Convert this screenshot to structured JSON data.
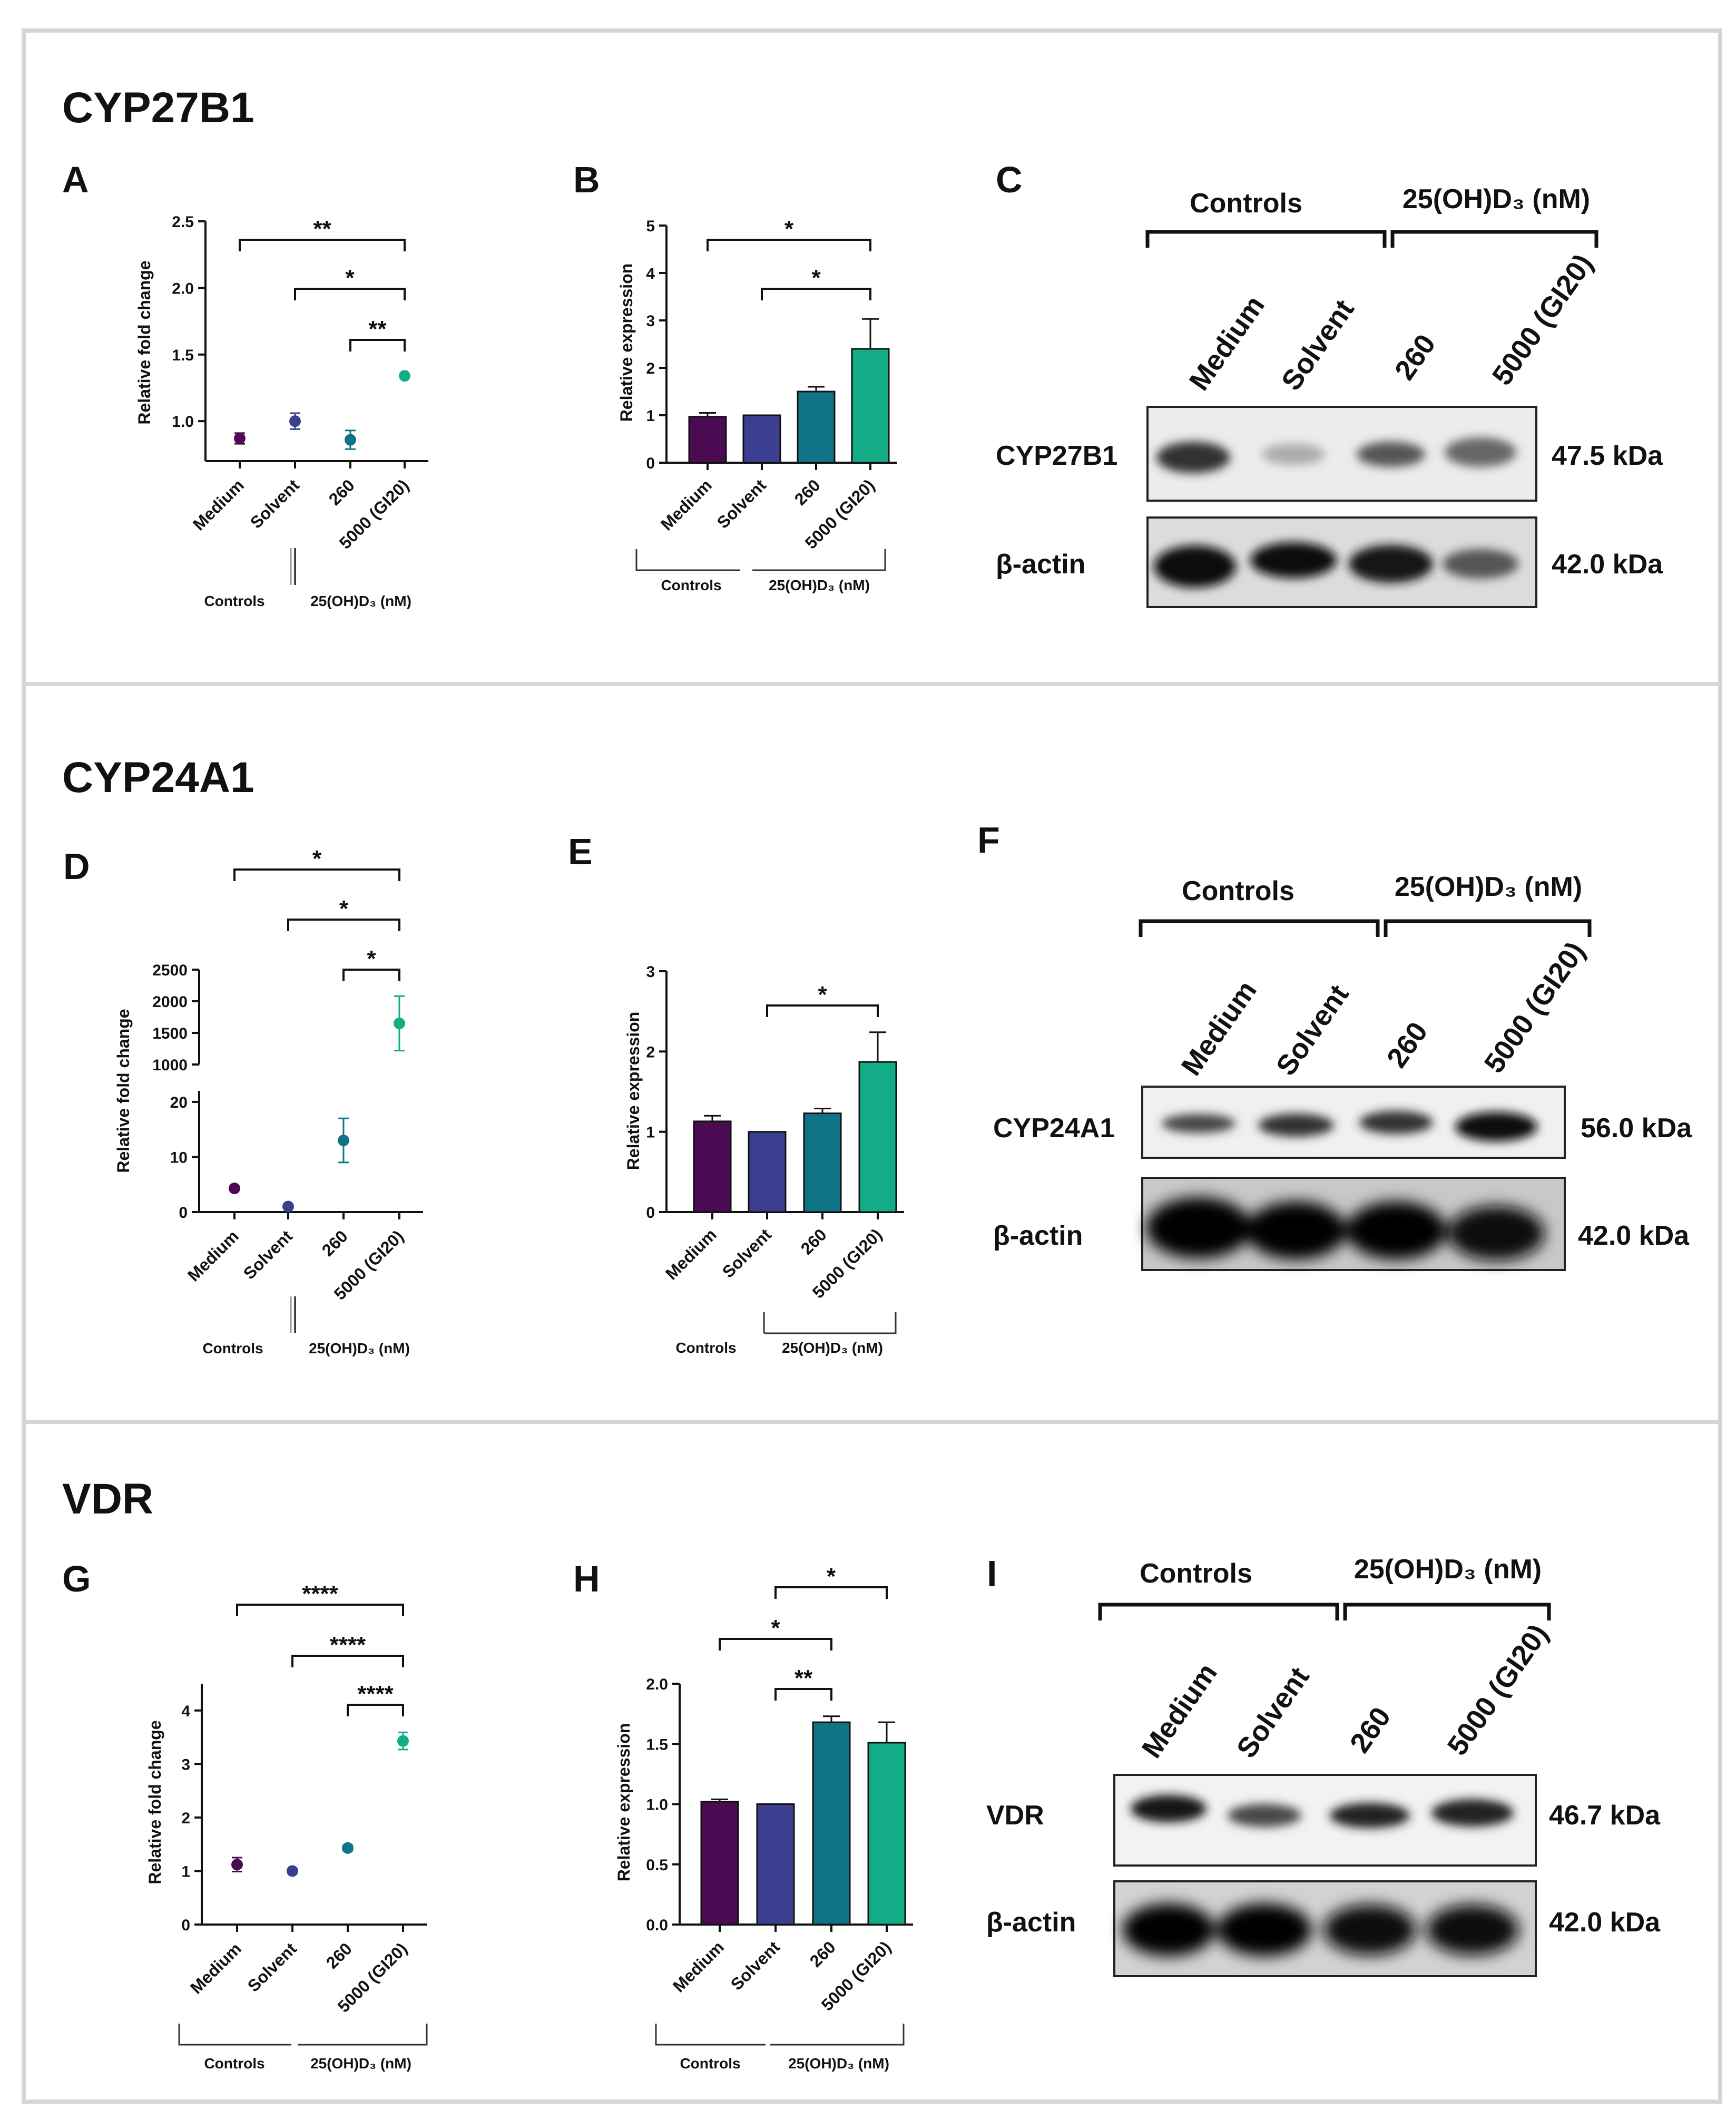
{
  "colors": {
    "medium": "#4b0b52",
    "solvent": "#3a3f8f",
    "c260": "#0f7485",
    "c5000": "#12ad86",
    "frame": "#d6d6d6"
  },
  "categories": [
    "Medium",
    "Solvent",
    "260",
    "5000 (GI20)"
  ],
  "group_labels": {
    "controls": "Controls",
    "treatment": "25(OH)D₃ (nM)"
  },
  "sections": [
    {
      "title": "CYP27B1"
    },
    {
      "title": "CYP24A1"
    },
    {
      "title": "VDR"
    }
  ],
  "panels": {
    "A": {
      "letter": "A"
    },
    "B": {
      "letter": "B"
    },
    "C": {
      "letter": "C"
    },
    "D": {
      "letter": "D"
    },
    "E": {
      "letter": "E"
    },
    "F": {
      "letter": "F"
    },
    "G": {
      "letter": "G"
    },
    "H": {
      "letter": "H"
    },
    "I": {
      "letter": "I"
    }
  },
  "chart_data": [
    {
      "panel": "A",
      "type": "scatter",
      "ylabel": "Relative fold change",
      "ylim": [
        0.7,
        2.5
      ],
      "yticks": [
        1.0,
        1.5,
        2.0,
        2.5
      ],
      "categories": [
        "Medium",
        "Solvent",
        "260",
        "5000 (GI20)"
      ],
      "values": [
        0.87,
        1.0,
        0.86,
        1.34
      ],
      "errors": [
        0.04,
        0.06,
        0.07,
        0.0
      ],
      "significance": [
        {
          "from": 0,
          "to": 3,
          "label": "**"
        },
        {
          "from": 1,
          "to": 3,
          "label": "*"
        },
        {
          "from": 2,
          "to": 3,
          "label": "**"
        }
      ]
    },
    {
      "panel": "B",
      "type": "bar",
      "ylabel": "Relative expression",
      "ylim": [
        0,
        5
      ],
      "yticks": [
        0,
        1,
        2,
        3,
        4,
        5
      ],
      "categories": [
        "Medium",
        "Solvent",
        "260",
        "5000 (GI20)"
      ],
      "values": [
        0.97,
        1.0,
        1.5,
        2.4
      ],
      "errors": [
        0.08,
        0.0,
        0.1,
        0.63
      ],
      "significance": [
        {
          "from": 0,
          "to": 3,
          "label": "*"
        },
        {
          "from": 1,
          "to": 3,
          "label": "*"
        }
      ]
    },
    {
      "panel": "D",
      "type": "scatter",
      "ylabel": "Relative fold change",
      "yticks_lower": [
        0,
        10,
        20
      ],
      "ylim_lower": [
        0,
        22
      ],
      "yticks_upper": [
        1000,
        1500,
        2000,
        2500
      ],
      "ylim_upper": [
        1000,
        2500
      ],
      "categories": [
        "Medium",
        "Solvent",
        "260",
        "5000 (GI20)"
      ],
      "values": [
        4.3,
        1.0,
        13.0,
        1650
      ],
      "errors": [
        0.3,
        0.0,
        4.0,
        430
      ],
      "significance": [
        {
          "from": 0,
          "to": 3,
          "label": "*"
        },
        {
          "from": 1,
          "to": 3,
          "label": "*"
        },
        {
          "from": 2,
          "to": 3,
          "label": "*"
        }
      ]
    },
    {
      "panel": "E",
      "type": "bar",
      "ylabel": "Relative expression",
      "ylim": [
        0,
        3
      ],
      "yticks": [
        0,
        1,
        2,
        3
      ],
      "categories": [
        "Medium",
        "Solvent",
        "260",
        "5000 (GI20)"
      ],
      "values": [
        1.13,
        1.0,
        1.23,
        1.87
      ],
      "errors": [
        0.07,
        0.0,
        0.06,
        0.37
      ],
      "significance": [
        {
          "from": 1,
          "to": 3,
          "label": "*"
        }
      ]
    },
    {
      "panel": "G",
      "type": "scatter",
      "ylabel": "Relative fold change",
      "ylim": [
        0,
        4.5
      ],
      "yticks": [
        0,
        1,
        2,
        3,
        4
      ],
      "categories": [
        "Medium",
        "Solvent",
        "260",
        "5000 (GI20)"
      ],
      "values": [
        1.12,
        1.0,
        1.43,
        3.43
      ],
      "errors": [
        0.13,
        0.0,
        0.05,
        0.16
      ],
      "significance": [
        {
          "from": 0,
          "to": 3,
          "label": "****"
        },
        {
          "from": 1,
          "to": 3,
          "label": "****"
        },
        {
          "from": 2,
          "to": 3,
          "label": "****"
        }
      ]
    },
    {
      "panel": "H",
      "type": "bar",
      "ylabel": "Relative expression",
      "ylim": [
        0,
        2.0
      ],
      "yticks": [
        0.0,
        0.5,
        1.0,
        1.5,
        2.0
      ],
      "categories": [
        "Medium",
        "Solvent",
        "260",
        "5000 (GI20)"
      ],
      "values": [
        1.02,
        1.0,
        1.68,
        1.51
      ],
      "errors": [
        0.02,
        0.0,
        0.05,
        0.17
      ],
      "significance": [
        {
          "from": 1,
          "to": 3,
          "label": "*"
        },
        {
          "from": 0,
          "to": 2,
          "label": "*"
        },
        {
          "from": 1,
          "to": 2,
          "label": "**"
        }
      ]
    }
  ],
  "blots": [
    {
      "panel": "C",
      "target": "CYP27B1",
      "target_kda": "47.5 kDa",
      "control": "β-actin",
      "control_kda": "42.0 kDa"
    },
    {
      "panel": "F",
      "target": "CYP24A1",
      "target_kda": "56.0 kDa",
      "control": "β-actin",
      "control_kda": "42.0 kDa"
    },
    {
      "panel": "I",
      "target": "VDR",
      "target_kda": "46.7 kDa",
      "control": "β-actin",
      "control_kda": "42.0 kDa"
    }
  ]
}
